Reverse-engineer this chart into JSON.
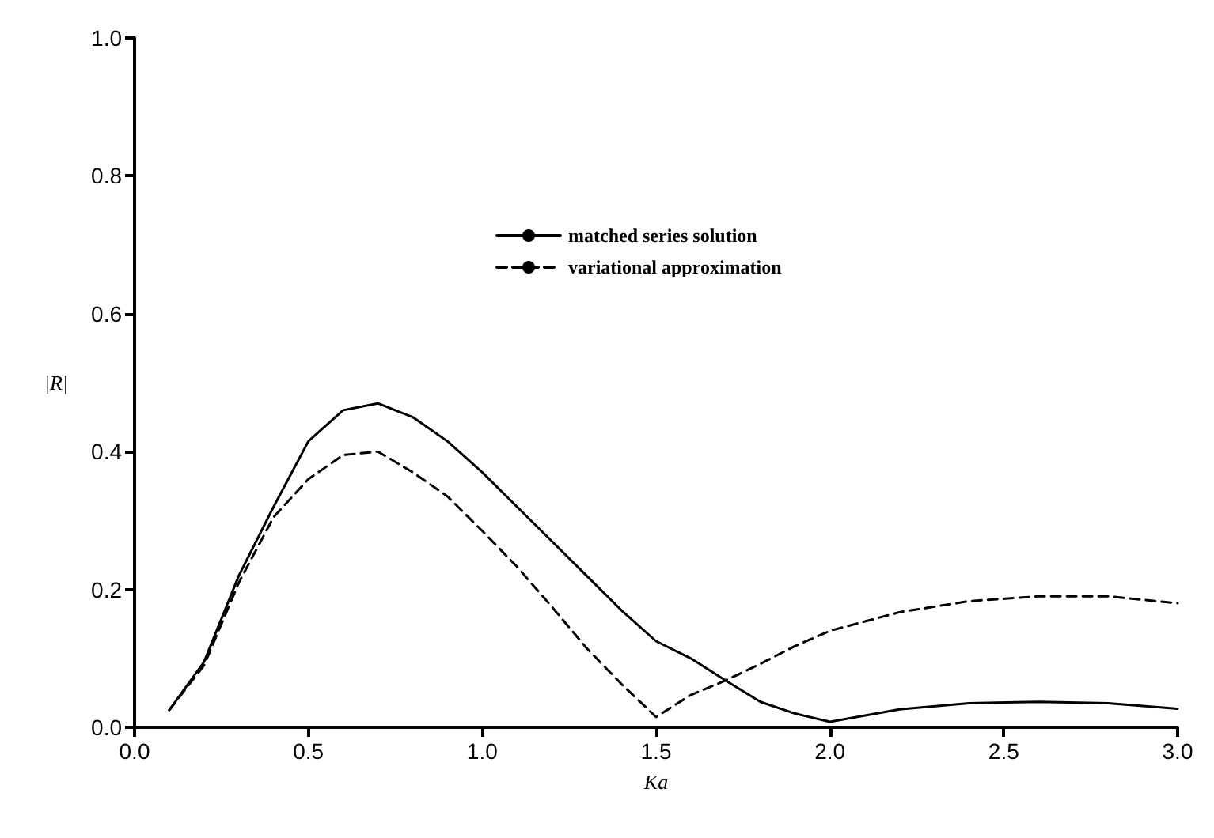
{
  "chart_data": {
    "type": "line",
    "xlabel": "Ka",
    "ylabel": "|R|",
    "xlim": [
      0,
      3
    ],
    "ylim": [
      0,
      1
    ],
    "xticks": [
      {
        "value": 0,
        "label": "0.0"
      },
      0.5,
      {
        "value": 1,
        "label": "1.0"
      },
      1.5,
      {
        "value": 2,
        "label": "2.0"
      },
      2.5,
      {
        "value": 3,
        "label": "3.0"
      }
    ],
    "yticks": [
      {
        "value": 0,
        "label": "0.0"
      },
      0.2,
      0.4,
      0.6,
      0.8,
      {
        "value": 1,
        "label": "1.0"
      }
    ],
    "grid": false,
    "legend": "top right",
    "marker": "none",
    "series": [
      {
        "name": "matched series solution",
        "color": "#000000",
        "line_style": "solid",
        "x": [
          0.1,
          0.2,
          0.3,
          0.4,
          0.5,
          0.6,
          0.7,
          0.8,
          0.9,
          1.0,
          1.1,
          1.2,
          1.3,
          1.4,
          1.5,
          1.6,
          1.7,
          1.8,
          1.9,
          2.0,
          2.2,
          2.4,
          2.6,
          2.8,
          3.0
        ],
        "values": [
          0.025,
          0.095,
          0.22,
          0.32,
          0.415,
          0.46,
          0.47,
          0.45,
          0.415,
          0.37,
          0.32,
          0.27,
          0.22,
          0.17,
          0.125,
          0.1,
          0.068,
          0.037,
          0.02,
          0.008,
          0.026,
          0.035,
          0.037,
          0.035,
          0.027
        ]
      },
      {
        "name": "variational approximation",
        "color": "#000000",
        "line_style": "dashed",
        "x": [
          0.1,
          0.2,
          0.3,
          0.4,
          0.5,
          0.6,
          0.7,
          0.8,
          0.9,
          1.0,
          1.1,
          1.2,
          1.3,
          1.4,
          1.5,
          1.6,
          1.7,
          1.8,
          1.9,
          2.0,
          2.2,
          2.4,
          2.6,
          2.8,
          3.0
        ],
        "values": [
          0.025,
          0.09,
          0.21,
          0.305,
          0.36,
          0.395,
          0.4,
          0.37,
          0.335,
          0.285,
          0.233,
          0.175,
          0.115,
          0.063,
          0.015,
          0.047,
          0.068,
          0.092,
          0.118,
          0.14,
          0.167,
          0.183,
          0.19,
          0.19,
          0.18
        ]
      }
    ]
  }
}
